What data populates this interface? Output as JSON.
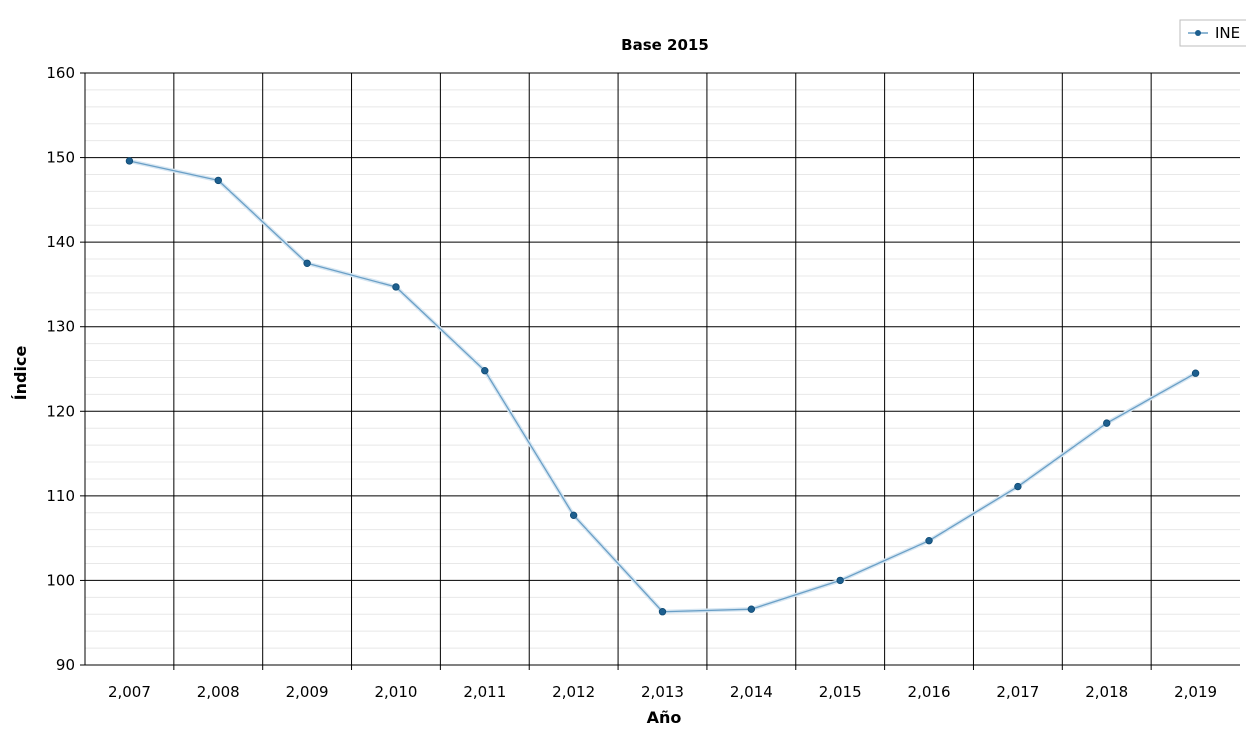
{
  "chart_data": {
    "type": "line",
    "title": "Base 2015",
    "xlabel": "Año",
    "ylabel": "Índice",
    "x": [
      2007,
      2008,
      2009,
      2010,
      2011,
      2012,
      2013,
      2014,
      2015,
      2016,
      2017,
      2018,
      2019
    ],
    "x_tick_labels": [
      "2,007",
      "2,008",
      "2,009",
      "2,010",
      "2,011",
      "2,012",
      "2,013",
      "2,014",
      "2,015",
      "2,016",
      "2,017",
      "2,018",
      "2,019"
    ],
    "xlim": [
      2006.5,
      2019.5
    ],
    "ylim": [
      90,
      160
    ],
    "y_ticks": [
      90,
      100,
      110,
      120,
      130,
      140,
      150,
      160
    ],
    "y_tick_labels": [
      "90",
      "100",
      "110",
      "120",
      "130",
      "140",
      "150",
      "160"
    ],
    "series": [
      {
        "name": "INE",
        "values": [
          149.6,
          147.3,
          137.5,
          134.7,
          124.8,
          107.7,
          96.3,
          96.6,
          100.0,
          104.7,
          111.1,
          118.6,
          124.5
        ]
      }
    ],
    "grid": true,
    "minor_grid": true,
    "legend_position": "top-right",
    "colors": {
      "line": "#6a9fc6",
      "marker": "#1d5f8f",
      "major_grid": "#000000",
      "minor_grid": "#e8e8e8",
      "axis": "#000000"
    }
  }
}
